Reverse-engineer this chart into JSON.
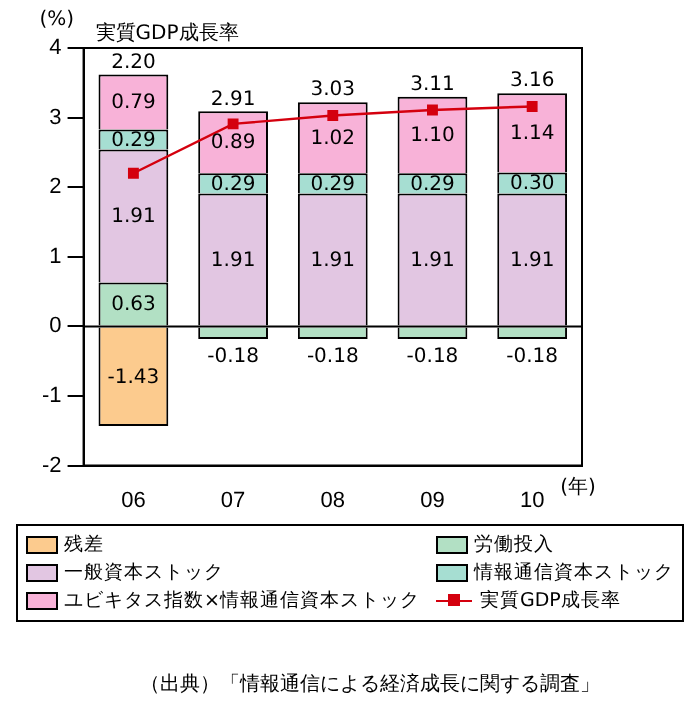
{
  "chart_data": {
    "type": "bar",
    "stacked": true,
    "categories": [
      "06",
      "07",
      "08",
      "09",
      "10"
    ],
    "ylabel": "(%)",
    "xlabel": "(年)",
    "ylim": [
      -2,
      4
    ],
    "yticks": [
      -2,
      -1,
      0,
      1,
      2,
      3,
      4
    ],
    "grid": false,
    "legend": "bottom",
    "ref_lines": [
      {
        "axis": "y",
        "value": 0,
        "color": "#000000"
      }
    ],
    "totals": [
      "2.20",
      "2.91",
      "3.03",
      "3.11",
      "3.16"
    ],
    "series": [
      {
        "name": "残差",
        "color": "#fccb8e",
        "values": [
          -1.43,
          null,
          null,
          null,
          null
        ],
        "value_labels": [
          "-1.43",
          null,
          null,
          null,
          null
        ]
      },
      {
        "name": "労働投入",
        "color": "#b2e0c4",
        "values": [
          0.63,
          -0.18,
          -0.18,
          -0.18,
          -0.18
        ],
        "value_labels": [
          "0.63",
          "-0.18",
          "-0.18",
          "-0.18",
          "-0.18"
        ]
      },
      {
        "name": "一般資本ストック",
        "color": "#e2c6e2",
        "values": [
          1.91,
          1.91,
          1.91,
          1.91,
          1.91
        ],
        "value_labels": [
          "1.91",
          "1.91",
          "1.91",
          "1.91",
          "1.91"
        ]
      },
      {
        "name": "情報通信資本ストック",
        "color": "#a6ded2",
        "values": [
          0.29,
          0.29,
          0.29,
          0.29,
          0.3
        ],
        "value_labels": [
          "0.29",
          "0.29",
          "0.29",
          "0.29",
          "0.30"
        ]
      },
      {
        "name": "ユビキタス指数×情報通信資本ストック",
        "color": "#f8b2d8",
        "values": [
          0.79,
          0.89,
          1.02,
          1.1,
          1.14
        ],
        "value_labels": [
          "0.79",
          "0.89",
          "1.02",
          "1.10",
          "1.14"
        ]
      },
      {
        "name": "実質GDP成長率",
        "type": "line",
        "color": "#d4000e",
        "marker": "square",
        "values": [
          2.2,
          2.91,
          3.03,
          3.11,
          3.16
        ]
      }
    ],
    "annotations": [
      "実質GDP成長率",
      "（出典）「情報通信による経済成長に関する調査」"
    ]
  }
}
